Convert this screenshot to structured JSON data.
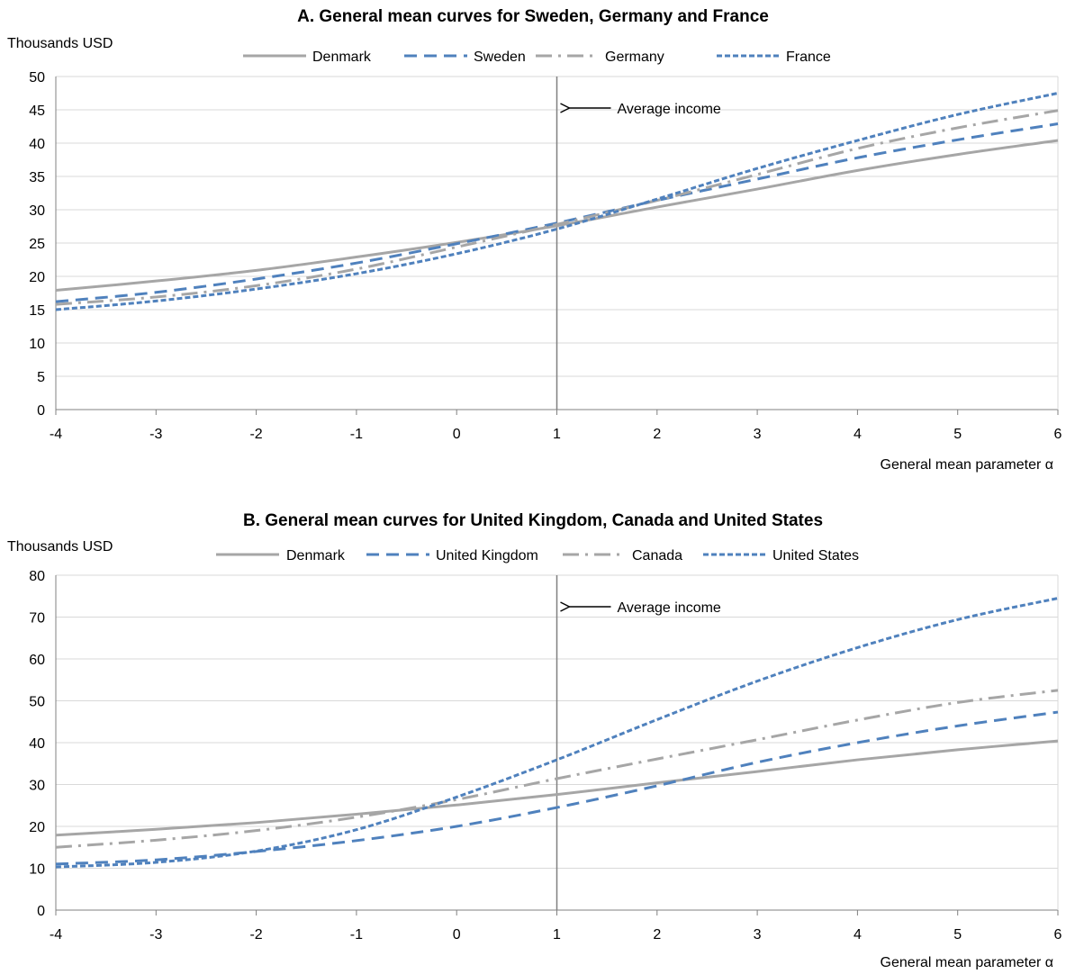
{
  "colors": {
    "denmark": "#a6a6a6",
    "blue": "#4f81bd",
    "gray_dashdot": "#a6a6a6",
    "grid": "#d9d9d9",
    "axis": "#808080"
  },
  "chart_data": [
    {
      "type": "line",
      "title": "A. General mean curves for Sweden, Germany and France",
      "ylabel": "Thousands USD",
      "xlabel": "General mean parameter α",
      "ylim": [
        0,
        50
      ],
      "yticks": [
        "0",
        "5",
        "10",
        "15",
        "20",
        "25",
        "30",
        "35",
        "40",
        "45",
        "50"
      ],
      "xlim": [
        -4,
        6
      ],
      "xticks": [
        "-4",
        "-3",
        "-2",
        "-1",
        "0",
        "1",
        "2",
        "3",
        "4",
        "5",
        "6"
      ],
      "grid": "horizontal",
      "legend_position": "top",
      "annotation": {
        "text": "Average income",
        "x": 1
      },
      "x": [
        -4,
        -3,
        -2,
        -1,
        0,
        1,
        2,
        3,
        4,
        5,
        6
      ],
      "series": [
        {
          "name": "Denmark",
          "style": "solid",
          "color": "#a6a6a6",
          "values": [
            17.9,
            19.3,
            20.9,
            22.9,
            25.1,
            27.6,
            30.4,
            33.1,
            35.9,
            38.3,
            40.4
          ]
        },
        {
          "name": "Sweden",
          "style": "dash",
          "color": "#4f81bd",
          "values": [
            16.2,
            17.6,
            19.6,
            22.0,
            24.9,
            28.0,
            31.4,
            34.6,
            37.8,
            40.5,
            42.9
          ]
        },
        {
          "name": "Germany",
          "style": "dashdot",
          "color": "#a6a6a6",
          "values": [
            15.8,
            16.9,
            18.6,
            21.1,
            24.4,
            27.8,
            31.4,
            35.3,
            39.2,
            42.3,
            44.9
          ]
        },
        {
          "name": "France",
          "style": "dot",
          "color": "#4f81bd",
          "values": [
            15.0,
            16.3,
            18.1,
            20.4,
            23.4,
            27.1,
            31.6,
            36.2,
            40.4,
            44.3,
            47.5
          ]
        }
      ]
    },
    {
      "type": "line",
      "title": "B. General mean curves for United Kingdom, Canada and United States",
      "ylabel": "Thousands USD",
      "xlabel": "General mean parameter α",
      "ylim": [
        0,
        80
      ],
      "yticks": [
        "0",
        "10",
        "20",
        "30",
        "40",
        "50",
        "60",
        "70",
        "80"
      ],
      "xlim": [
        -4,
        6
      ],
      "xticks": [
        "-4",
        "-3",
        "-2",
        "-1",
        "0",
        "1",
        "2",
        "3",
        "4",
        "5",
        "6"
      ],
      "grid": "horizontal",
      "legend_position": "top",
      "annotation": {
        "text": "Average income",
        "x": 1
      },
      "x": [
        -4,
        -3,
        -2,
        -1,
        0,
        1,
        2,
        3,
        4,
        5,
        6
      ],
      "series": [
        {
          "name": "Denmark",
          "style": "solid",
          "color": "#a6a6a6",
          "values": [
            17.9,
            19.3,
            20.9,
            22.9,
            25.1,
            27.6,
            30.4,
            33.1,
            35.9,
            38.3,
            40.4
          ]
        },
        {
          "name": "United Kingdom",
          "style": "dash",
          "color": "#4f81bd",
          "values": [
            11.0,
            12.0,
            14.0,
            16.6,
            20.0,
            24.5,
            29.7,
            35.3,
            40.0,
            44.0,
            47.3
          ]
        },
        {
          "name": "Canada",
          "style": "dashdot",
          "color": "#a6a6a6",
          "values": [
            15.0,
            16.7,
            19.0,
            22.2,
            26.4,
            31.4,
            36.1,
            40.7,
            45.4,
            49.6,
            52.5
          ]
        },
        {
          "name": "United States",
          "style": "dot",
          "color": "#4f81bd",
          "values": [
            10.3,
            11.4,
            14.1,
            19.2,
            27.0,
            35.9,
            45.5,
            54.7,
            62.7,
            69.4,
            74.5
          ]
        }
      ]
    }
  ]
}
